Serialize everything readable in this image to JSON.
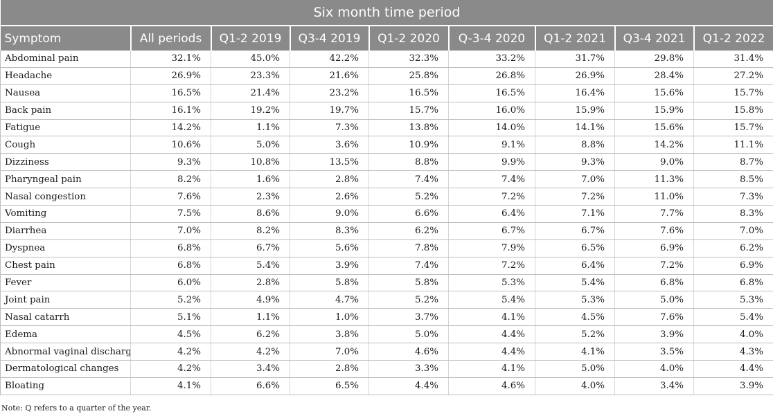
{
  "table": {
    "title": "Six month time period",
    "columns": [
      "Symptom",
      "All periods",
      "Q1-2 2019",
      "Q3-4 2019",
      "Q1-2 2020",
      "Q-3-4 2020",
      "Q1-2 2021",
      "Q3-4 2021",
      "Q1-2 2022"
    ],
    "rows": [
      [
        "Abdominal pain",
        "32.1%",
        "45.0%",
        "42.2%",
        "32.3%",
        "33.2%",
        "31.7%",
        "29.8%",
        "31.4%"
      ],
      [
        "Headache",
        "26.9%",
        "23.3%",
        "21.6%",
        "25.8%",
        "26.8%",
        "26.9%",
        "28.4%",
        "27.2%"
      ],
      [
        "Nausea",
        "16.5%",
        "21.4%",
        "23.2%",
        "16.5%",
        "16.5%",
        "16.4%",
        "15.6%",
        "15.7%"
      ],
      [
        "Back pain",
        "16.1%",
        "19.2%",
        "19.7%",
        "15.7%",
        "16.0%",
        "15.9%",
        "15.9%",
        "15.8%"
      ],
      [
        "Fatigue",
        "14.2%",
        "1.1%",
        "7.3%",
        "13.8%",
        "14.0%",
        "14.1%",
        "15.6%",
        "15.7%"
      ],
      [
        "Cough",
        "10.6%",
        "5.0%",
        "3.6%",
        "10.9%",
        "9.1%",
        "8.8%",
        "14.2%",
        "11.1%"
      ],
      [
        "Dizziness",
        "9.3%",
        "10.8%",
        "13.5%",
        "8.8%",
        "9.9%",
        "9.3%",
        "9.0%",
        "8.7%"
      ],
      [
        "Pharyngeal pain",
        "8.2%",
        "1.6%",
        "2.8%",
        "7.4%",
        "7.4%",
        "7.0%",
        "11.3%",
        "8.5%"
      ],
      [
        "Nasal congestion",
        "7.6%",
        "2.3%",
        "2.6%",
        "5.2%",
        "7.2%",
        "7.2%",
        "11.0%",
        "7.3%"
      ],
      [
        "Vomiting",
        "7.5%",
        "8.6%",
        "9.0%",
        "6.6%",
        "6.4%",
        "7.1%",
        "7.7%",
        "8.3%"
      ],
      [
        "Diarrhea",
        "7.0%",
        "8.2%",
        "8.3%",
        "6.2%",
        "6.7%",
        "6.7%",
        "7.6%",
        "7.0%"
      ],
      [
        "Dyspnea",
        "6.8%",
        "6.7%",
        "5.6%",
        "7.8%",
        "7.9%",
        "6.5%",
        "6.9%",
        "6.2%"
      ],
      [
        "Chest pain",
        "6.8%",
        "5.4%",
        "3.9%",
        "7.4%",
        "7.2%",
        "6.4%",
        "7.2%",
        "6.9%"
      ],
      [
        "Fever",
        "6.0%",
        "2.8%",
        "5.8%",
        "5.8%",
        "5.3%",
        "5.4%",
        "6.8%",
        "6.8%"
      ],
      [
        "Joint pain",
        "5.2%",
        "4.9%",
        "4.7%",
        "5.2%",
        "5.4%",
        "5.3%",
        "5.0%",
        "5.3%"
      ],
      [
        "Nasal catarrh",
        "5.1%",
        "1.1%",
        "1.0%",
        "3.7%",
        "4.1%",
        "4.5%",
        "7.6%",
        "5.4%"
      ],
      [
        "Edema",
        "4.5%",
        "6.2%",
        "3.8%",
        "5.0%",
        "4.4%",
        "5.2%",
        "3.9%",
        "4.0%"
      ],
      [
        "Abnormal vaginal discharge",
        "4.2%",
        "4.2%",
        "7.0%",
        "4.6%",
        "4.4%",
        "4.1%",
        "3.5%",
        "4.3%"
      ],
      [
        "Dermatological changes",
        "4.2%",
        "3.4%",
        "2.8%",
        "3.3%",
        "4.1%",
        "5.0%",
        "4.0%",
        "4.4%"
      ],
      [
        "Bloating",
        "4.1%",
        "6.6%",
        "6.5%",
        "4.4%",
        "4.6%",
        "4.0%",
        "3.4%",
        "3.9%"
      ]
    ],
    "note": "Note: Q refers to a quarter of the year.",
    "colors": {
      "header_bg": "#8a8a8a",
      "header_text": "#ffffff",
      "grid": "#bdbdbd"
    }
  }
}
